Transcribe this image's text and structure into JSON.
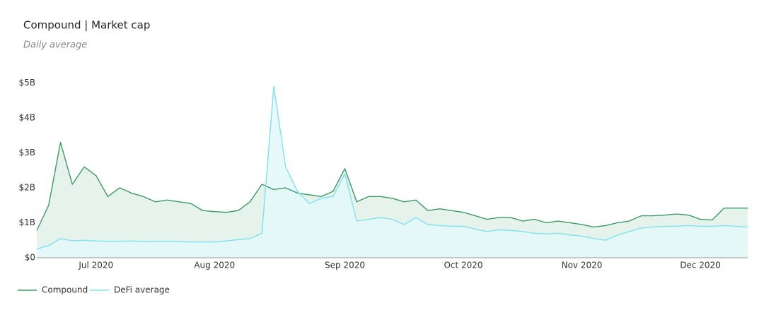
{
  "chart_data": {
    "type": "area",
    "title": "Compound | Market cap",
    "subtitle": "Daily average",
    "categories": [
      null,
      null,
      null,
      null,
      null,
      "Jul 2020",
      null,
      null,
      null,
      null,
      null,
      null,
      null,
      null,
      null,
      "Aug 2020",
      null,
      null,
      null,
      null,
      null,
      null,
      null,
      null,
      null,
      null,
      "Sep 2020",
      null,
      null,
      null,
      null,
      null,
      null,
      null,
      null,
      null,
      "Oct 2020",
      null,
      null,
      null,
      null,
      null,
      null,
      null,
      null,
      null,
      "Nov 2020",
      null,
      null,
      null,
      null,
      null,
      null,
      null,
      null,
      null,
      "Dec 2020",
      null,
      null,
      null,
      null
    ],
    "series": [
      {
        "name": "Compound",
        "color": "#3d9a66",
        "fill": "#e6f2ec",
        "values": [
          0.78,
          1.5,
          3.3,
          2.1,
          2.6,
          2.35,
          1.75,
          2.0,
          1.85,
          1.75,
          1.6,
          1.65,
          1.6,
          1.55,
          1.35,
          1.32,
          1.3,
          1.35,
          1.6,
          2.1,
          1.95,
          2.0,
          1.85,
          1.8,
          1.75,
          1.9,
          2.55,
          1.6,
          1.75,
          1.75,
          1.7,
          1.6,
          1.65,
          1.35,
          1.4,
          1.35,
          1.3,
          1.2,
          1.1,
          1.15,
          1.15,
          1.05,
          1.1,
          1.0,
          1.05,
          1.0,
          0.95,
          0.88,
          0.92,
          1.0,
          1.05,
          1.2,
          1.2,
          1.22,
          1.25,
          1.22,
          1.1,
          1.08,
          1.42,
          1.42,
          1.42
        ]
      },
      {
        "name": "DeFi average",
        "color": "#7fe2ee",
        "fill": "#e4f8f9",
        "values": [
          0.25,
          0.35,
          0.55,
          0.48,
          0.5,
          0.48,
          0.47,
          0.47,
          0.48,
          0.46,
          0.47,
          0.47,
          0.46,
          0.45,
          0.45,
          0.45,
          0.48,
          0.52,
          0.55,
          0.7,
          4.9,
          2.6,
          1.9,
          1.55,
          1.7,
          1.75,
          2.4,
          1.05,
          1.1,
          1.15,
          1.1,
          0.95,
          1.15,
          0.95,
          0.92,
          0.9,
          0.9,
          0.82,
          0.75,
          0.8,
          0.78,
          0.75,
          0.7,
          0.68,
          0.7,
          0.65,
          0.62,
          0.55,
          0.5,
          0.65,
          0.75,
          0.85,
          0.88,
          0.9,
          0.9,
          0.92,
          0.9,
          0.9,
          0.92,
          0.9,
          0.88
        ]
      }
    ],
    "ylim": [
      0,
      5.15
    ],
    "yticks": [
      {
        "value": 0,
        "label": "$0"
      },
      {
        "value": 1,
        "label": "$1B"
      },
      {
        "value": 2,
        "label": "$2B"
      },
      {
        "value": 3,
        "label": "$3B"
      },
      {
        "value": 4,
        "label": "$4B"
      },
      {
        "value": 5,
        "label": "$5B"
      }
    ],
    "grid": false,
    "legend": "bottom-left"
  }
}
